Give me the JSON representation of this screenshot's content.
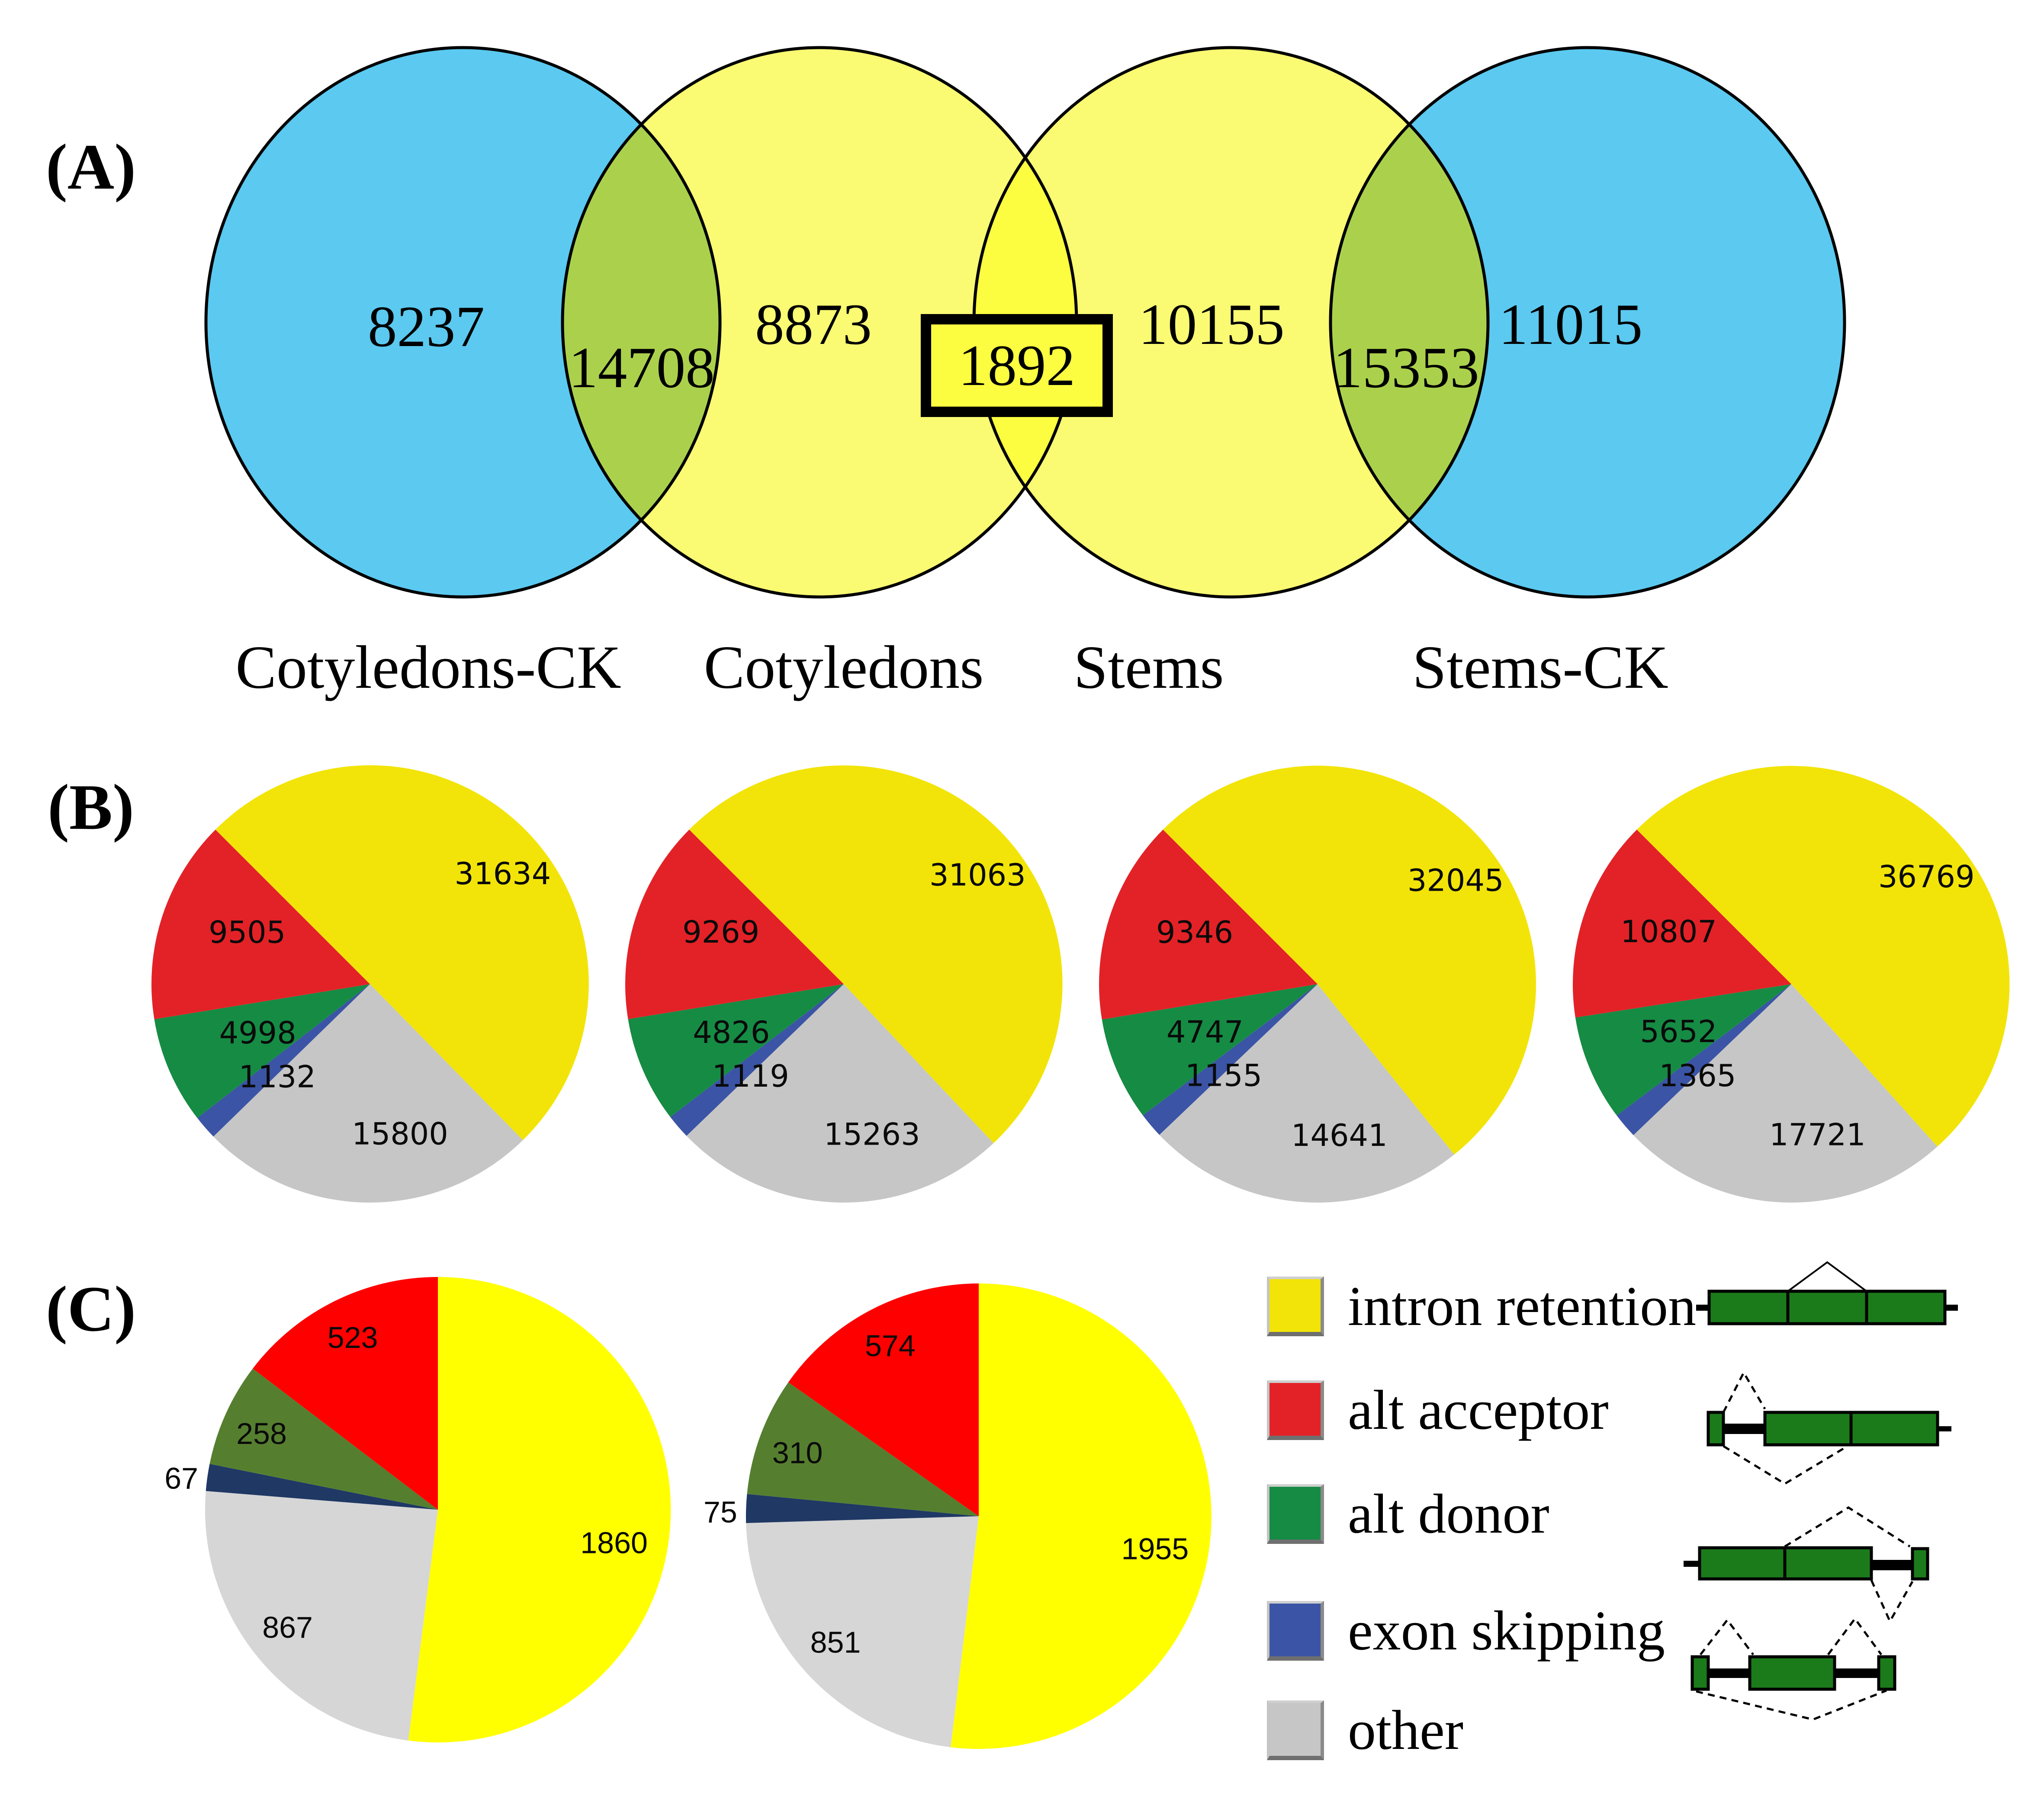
{
  "figure": {
    "panel_a_label": "(A)",
    "panel_b_label": "(B)",
    "panel_c_label": "(C)"
  },
  "venn": {
    "set_labels": [
      "Cotyledons-CK",
      "Cotyledons",
      "Stems",
      "Stems-CK"
    ],
    "region_values": {
      "cotyledons_ck_only": "8237",
      "cotyledons_ck_cotyledons": "14708",
      "cotyledons_only": "8873",
      "cotyledons_stems": "1892",
      "stems_only": "10155",
      "stems_stems_ck": "15353",
      "stems_ck_only": "11015"
    }
  },
  "legend": {
    "items": [
      {
        "key": "intron-retention",
        "label": "intron retention",
        "color": "#F2E408"
      },
      {
        "key": "alt-acceptor",
        "label": "alt acceptor",
        "color": "#E32227"
      },
      {
        "key": "alt-donor",
        "label": "alt donor",
        "color": "#168B44"
      },
      {
        "key": "exon-skipping",
        "label": "exon skipping",
        "color": "#3B54A5"
      },
      {
        "key": "other",
        "label": "other",
        "color": "#C6C6C6"
      }
    ]
  },
  "palette_b": [
    "#F2E408",
    "#E32227",
    "#168B44",
    "#3B54A5",
    "#C6C6C6"
  ],
  "palette_c": [
    "#FFFF00",
    "#FF0000",
    "#557F2F",
    "#1F3864",
    "#D6D6D6"
  ],
  "venn_colors": {
    "blue": "#5BC9F0",
    "yellow": "#FAFA73",
    "overlap_green": "#ABD14C",
    "overlap_yellow": "#FCFC40"
  },
  "gene_model_color": "#1B7B1B",
  "chart_data": [
    {
      "type": "venn",
      "panel": "A",
      "sets": [
        "Cotyledons-CK",
        "Cotyledons",
        "Stems",
        "Stems-CK"
      ],
      "regions": [
        {
          "sets": [
            "Cotyledons-CK"
          ],
          "value": 8237
        },
        {
          "sets": [
            "Cotyledons-CK",
            "Cotyledons"
          ],
          "value": 14708
        },
        {
          "sets": [
            "Cotyledons"
          ],
          "value": 8873
        },
        {
          "sets": [
            "Cotyledons",
            "Stems"
          ],
          "value": 1892,
          "highlighted": true
        },
        {
          "sets": [
            "Stems"
          ],
          "value": 10155
        },
        {
          "sets": [
            "Stems",
            "Stems-CK"
          ],
          "value": 15353
        },
        {
          "sets": [
            "Stems-CK"
          ],
          "value": 11015
        }
      ]
    },
    {
      "type": "pie",
      "panel": "B",
      "position": 1,
      "categories": [
        "intron retention",
        "alt acceptor",
        "alt donor",
        "exon skipping",
        "other"
      ],
      "values": [
        31634,
        9505,
        4998,
        1132,
        15800
      ]
    },
    {
      "type": "pie",
      "panel": "B",
      "position": 2,
      "categories": [
        "intron retention",
        "alt acceptor",
        "alt donor",
        "exon skipping",
        "other"
      ],
      "values": [
        31063,
        9269,
        4826,
        1119,
        15263
      ]
    },
    {
      "type": "pie",
      "panel": "B",
      "position": 3,
      "categories": [
        "intron retention",
        "alt acceptor",
        "alt donor",
        "exon skipping",
        "other"
      ],
      "values": [
        32045,
        9346,
        4747,
        1155,
        14641
      ]
    },
    {
      "type": "pie",
      "panel": "B",
      "position": 4,
      "categories": [
        "intron retention",
        "alt acceptor",
        "alt donor",
        "exon skipping",
        "other"
      ],
      "values": [
        36769,
        10807,
        5652,
        1365,
        17721
      ]
    },
    {
      "type": "pie",
      "panel": "C",
      "position": 1,
      "categories": [
        "intron retention",
        "alt acceptor",
        "alt donor",
        "exon skipping",
        "other"
      ],
      "values": [
        1860,
        523,
        258,
        67,
        867
      ]
    },
    {
      "type": "pie",
      "panel": "C",
      "position": 2,
      "categories": [
        "intron retention",
        "alt acceptor",
        "alt donor",
        "exon skipping",
        "other"
      ],
      "values": [
        1955,
        574,
        310,
        75,
        851
      ]
    }
  ]
}
